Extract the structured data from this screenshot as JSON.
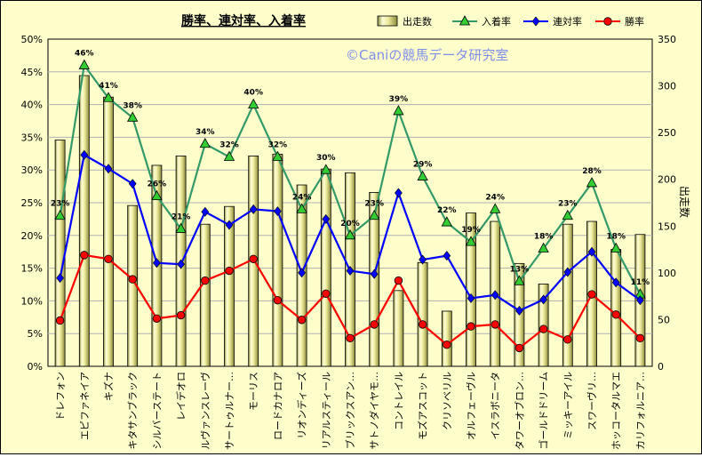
{
  "chart_data": {
    "type": "bar+line",
    "title": "勝率、連対率、入着率",
    "watermark": "©Caniの競馬データ研究室",
    "xlabel": "",
    "ylabel_left": "",
    "ylabel_right": "出走数",
    "y_left_ticks": [
      "0%",
      "5%",
      "10%",
      "15%",
      "20%",
      "25%",
      "30%",
      "35%",
      "40%",
      "45%",
      "50%"
    ],
    "y_right_ticks": [
      "0",
      "50",
      "100",
      "150",
      "200",
      "250",
      "300",
      "350"
    ],
    "ylim_left": [
      0,
      50
    ],
    "ylim_right": [
      0,
      350
    ],
    "grid": true,
    "legend_position": "top-right",
    "categories": [
      "ドレフォン",
      "エピファネイア",
      "キズナ",
      "キタサンブラック",
      "シルバーステート",
      "レイデオロ",
      "ルヴァンスレーヴ",
      "サートゥルナー…",
      "モーリス",
      "ロードカナロア",
      "リオンディーズ",
      "リアルスティール",
      "ブリックスアン…",
      "サトノダイヤモ…",
      "コントレイル",
      "モズアスコット",
      "クリソベリル",
      "オルフェーヴル",
      "イスラボニータ",
      "タワーオブロン…",
      "ゴールドドリーム",
      "ミッキーアイル",
      "スワーヴリ…",
      "ホッコータルマエ",
      "カリフォルニア…"
    ],
    "series": [
      {
        "name": "出走数",
        "type": "bar",
        "axis": "right",
        "color": "#e8e6a0",
        "values": [
          242,
          311,
          288,
          172,
          215,
          225,
          152,
          171,
          225,
          227,
          194,
          211,
          207,
          186,
          81,
          111,
          59,
          164,
          155,
          110,
          88,
          152,
          155,
          125,
          141
        ]
      },
      {
        "name": "入着率",
        "type": "line",
        "axis": "left",
        "color": "#339966",
        "marker": "triangle",
        "values": [
          23,
          46,
          41,
          38,
          26,
          21,
          34,
          32,
          40,
          32,
          24,
          30,
          20,
          23,
          39,
          29,
          22,
          19,
          24,
          13,
          18,
          23,
          28,
          18,
          11
        ],
        "labels": [
          "23%",
          "46%",
          "41%",
          "38%",
          "26%",
          "21%",
          "34%",
          "32%",
          "40%",
          "32%",
          "24%",
          "30%",
          "20%",
          "23%",
          "39%",
          "29%",
          "22%",
          "19%",
          "24%",
          "13%",
          "18%",
          "23%",
          "28%",
          "18%",
          "11%"
        ]
      },
      {
        "name": "連対率",
        "type": "line",
        "axis": "left",
        "color": "#0000ff",
        "marker": "diamond",
        "values": [
          13.5,
          32.3,
          30.2,
          27.9,
          15.8,
          15.6,
          23.6,
          21.6,
          24.0,
          23.7,
          14.3,
          22.5,
          14.6,
          14.1,
          26.5,
          16.3,
          16.9,
          10.4,
          10.9,
          8.5,
          10.2,
          14.4,
          17.5,
          12.8,
          10.1
        ]
      },
      {
        "name": "勝率",
        "type": "line",
        "axis": "left",
        "color": "#ff0000",
        "marker": "circle",
        "values": [
          7.0,
          17.0,
          16.4,
          13.3,
          7.3,
          7.8,
          13.1,
          14.6,
          16.4,
          10.1,
          7.1,
          11.1,
          4.3,
          6.4,
          13.1,
          6.4,
          3.3,
          6.1,
          6.4,
          2.8,
          5.7,
          4.1,
          11.0,
          7.9,
          4.3
        ]
      }
    ]
  }
}
